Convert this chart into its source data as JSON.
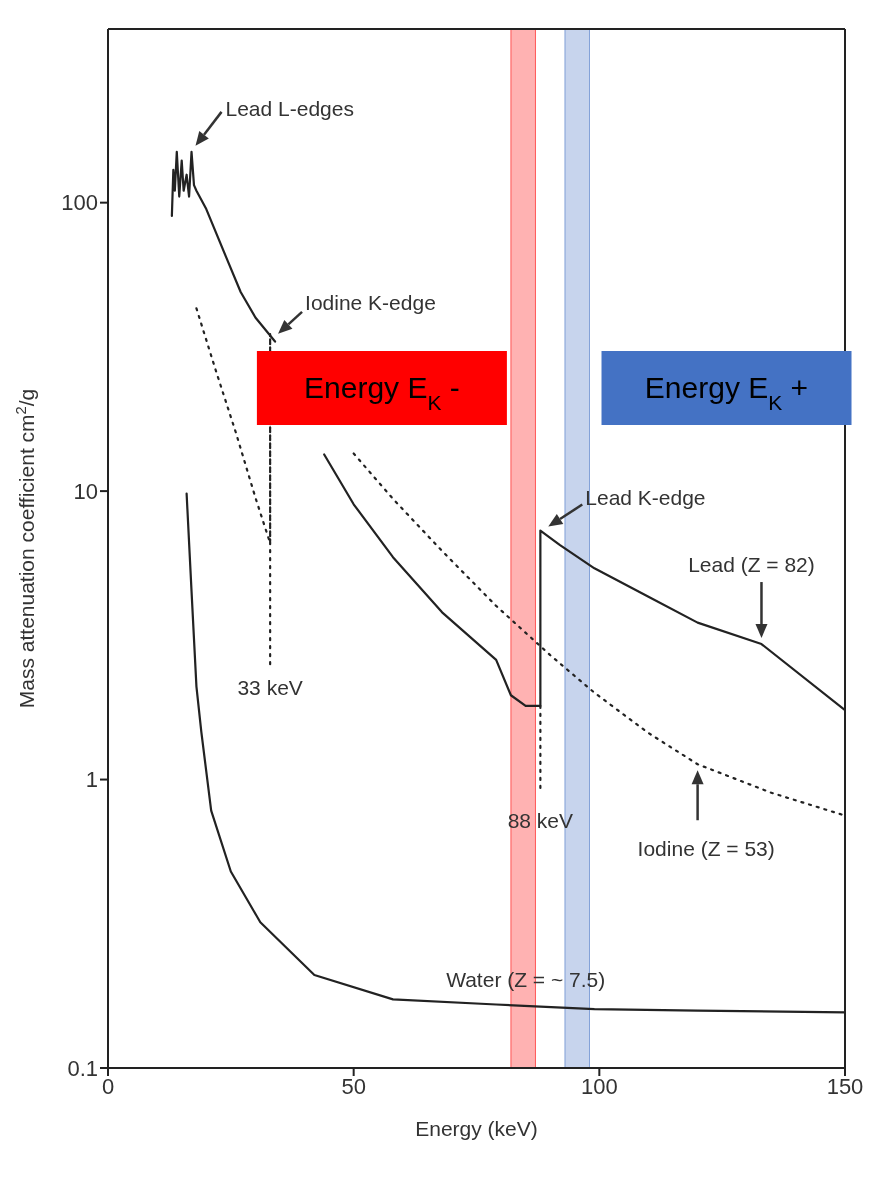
{
  "chart_data": {
    "type": "line",
    "xlabel": "Energy (keV)",
    "ylabel": "Mass attenuation coefficient cm$^{2}$/g",
    "log": "y",
    "xlim": [
      0,
      150
    ],
    "xticks": [
      0,
      50,
      100,
      150
    ],
    "ylim": [
      0.1,
      400
    ],
    "yticks": [
      0.1,
      1,
      10,
      100
    ],
    "series": [
      {
        "name": "Lead (Z = 82)",
        "color": "#222222",
        "line_style": "solid",
        "x": [
          13,
          13.3,
          13.6,
          14,
          14.5,
          15,
          15.4,
          16,
          16.5,
          17,
          17.5,
          18,
          20,
          24,
          27,
          30,
          34,
          38,
          44,
          50,
          58,
          68,
          79,
          82,
          85,
          88,
          88,
          92,
          99,
          110,
          120,
          133,
          150
        ],
        "values": [
          90,
          130,
          110,
          150,
          105,
          140,
          110,
          125,
          105,
          150,
          115,
          110,
          95,
          65,
          49,
          40,
          33,
          null,
          13.4,
          9,
          5.9,
          3.8,
          2.6,
          1.96,
          1.8,
          1.8,
          7.3,
          6.5,
          5.4,
          4.3,
          3.5,
          2.95,
          1.74
        ]
      },
      {
        "name": "Iodine (Z = 53)",
        "color": "#222222",
        "line_style": "dotted",
        "x": [
          18,
          22,
          26,
          30,
          33,
          33,
          37,
          42,
          50,
          58,
          68,
          79,
          90,
          99,
          110,
          120,
          135,
          150
        ],
        "values": [
          43,
          26,
          16,
          9.5,
          6.6,
          35,
          null,
          null,
          13.5,
          9.4,
          6.2,
          4,
          2.7,
          2,
          1.45,
          1.13,
          0.9,
          0.75
        ]
      },
      {
        "name": "Water  (Z = ~ 7.5)",
        "color": "#222222",
        "line_style": "solid",
        "x": [
          16,
          17,
          18,
          19,
          21,
          25,
          31,
          42,
          58,
          79,
          99,
          120,
          150
        ],
        "values": [
          9.8,
          4.5,
          2.1,
          1.46,
          0.78,
          0.48,
          0.32,
          0.21,
          0.173,
          0.166,
          0.16,
          0.158,
          0.156
        ]
      },
      {
        "name": "33 keV",
        "color": "#222222",
        "line_style": "dotted",
        "x": [
          33,
          33
        ],
        "values": [
          35,
          2.5
        ]
      },
      {
        "name": "88 keV",
        "color": "#222222",
        "line_style": "dotted",
        "x": [
          88,
          88
        ],
        "values": [
          1.8,
          0.9
        ]
      }
    ],
    "bands": [
      {
        "axis": "x",
        "from": 82,
        "to": 87,
        "label": "Energy E$_{K}$ -",
        "color": "#ff0000"
      },
      {
        "axis": "x",
        "from": 93,
        "to": 98,
        "label": "Energy E$_{K}$ +",
        "color": "#4472c4"
      }
    ],
    "annotations": [
      {
        "text": "Lead L-edges",
        "x": 17,
        "y": 150
      },
      {
        "text": "Iodine K-edge",
        "x": 34,
        "y": 34
      },
      {
        "text": "Lead K-edge",
        "x": 89,
        "y": 7.3
      }
    ]
  }
}
